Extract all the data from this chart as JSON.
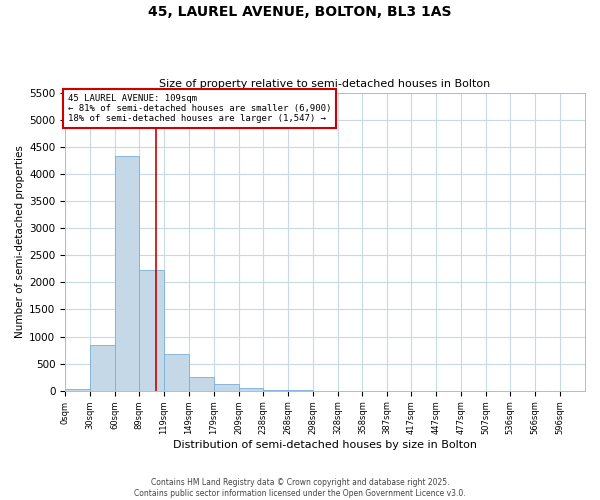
{
  "title": "45, LAUREL AVENUE, BOLTON, BL3 1AS",
  "subtitle": "Size of property relative to semi-detached houses in Bolton",
  "xlabel": "Distribution of semi-detached houses by size in Bolton",
  "ylabel": "Number of semi-detached properties",
  "bar_labels": [
    "0sqm",
    "30sqm",
    "60sqm",
    "89sqm",
    "119sqm",
    "149sqm",
    "179sqm",
    "209sqm",
    "238sqm",
    "268sqm",
    "298sqm",
    "328sqm",
    "358sqm",
    "387sqm",
    "417sqm",
    "447sqm",
    "477sqm",
    "507sqm",
    "536sqm",
    "566sqm",
    "596sqm"
  ],
  "bar_values": [
    30,
    840,
    4330,
    2230,
    670,
    260,
    115,
    50,
    20,
    5,
    2,
    0,
    0,
    0,
    0,
    0,
    0,
    0,
    0,
    0,
    0
  ],
  "bar_color": "#c5d8e8",
  "bar_edgecolor": "#7bafd4",
  "property_line_x": 109,
  "property_line_label": "45 LAUREL AVENUE: 109sqm",
  "annotation_line1": "← 81% of semi-detached houses are smaller (6,900)",
  "annotation_line2": "18% of semi-detached houses are larger (1,547) →",
  "annotation_box_color": "#cc0000",
  "ylim": [
    0,
    5500
  ],
  "yticks": [
    0,
    500,
    1000,
    1500,
    2000,
    2500,
    3000,
    3500,
    4000,
    4500,
    5000,
    5500
  ],
  "background_color": "#ffffff",
  "grid_color": "#c8d8e8",
  "footer_line1": "Contains HM Land Registry data © Crown copyright and database right 2025.",
  "footer_line2": "Contains public sector information licensed under the Open Government Licence v3.0.",
  "x_positions": [
    0,
    30,
    60,
    89,
    119,
    149,
    179,
    209,
    238,
    268,
    298,
    328,
    358,
    387,
    417,
    447,
    477,
    507,
    536,
    566,
    596
  ],
  "xlim": [
    0,
    626
  ]
}
